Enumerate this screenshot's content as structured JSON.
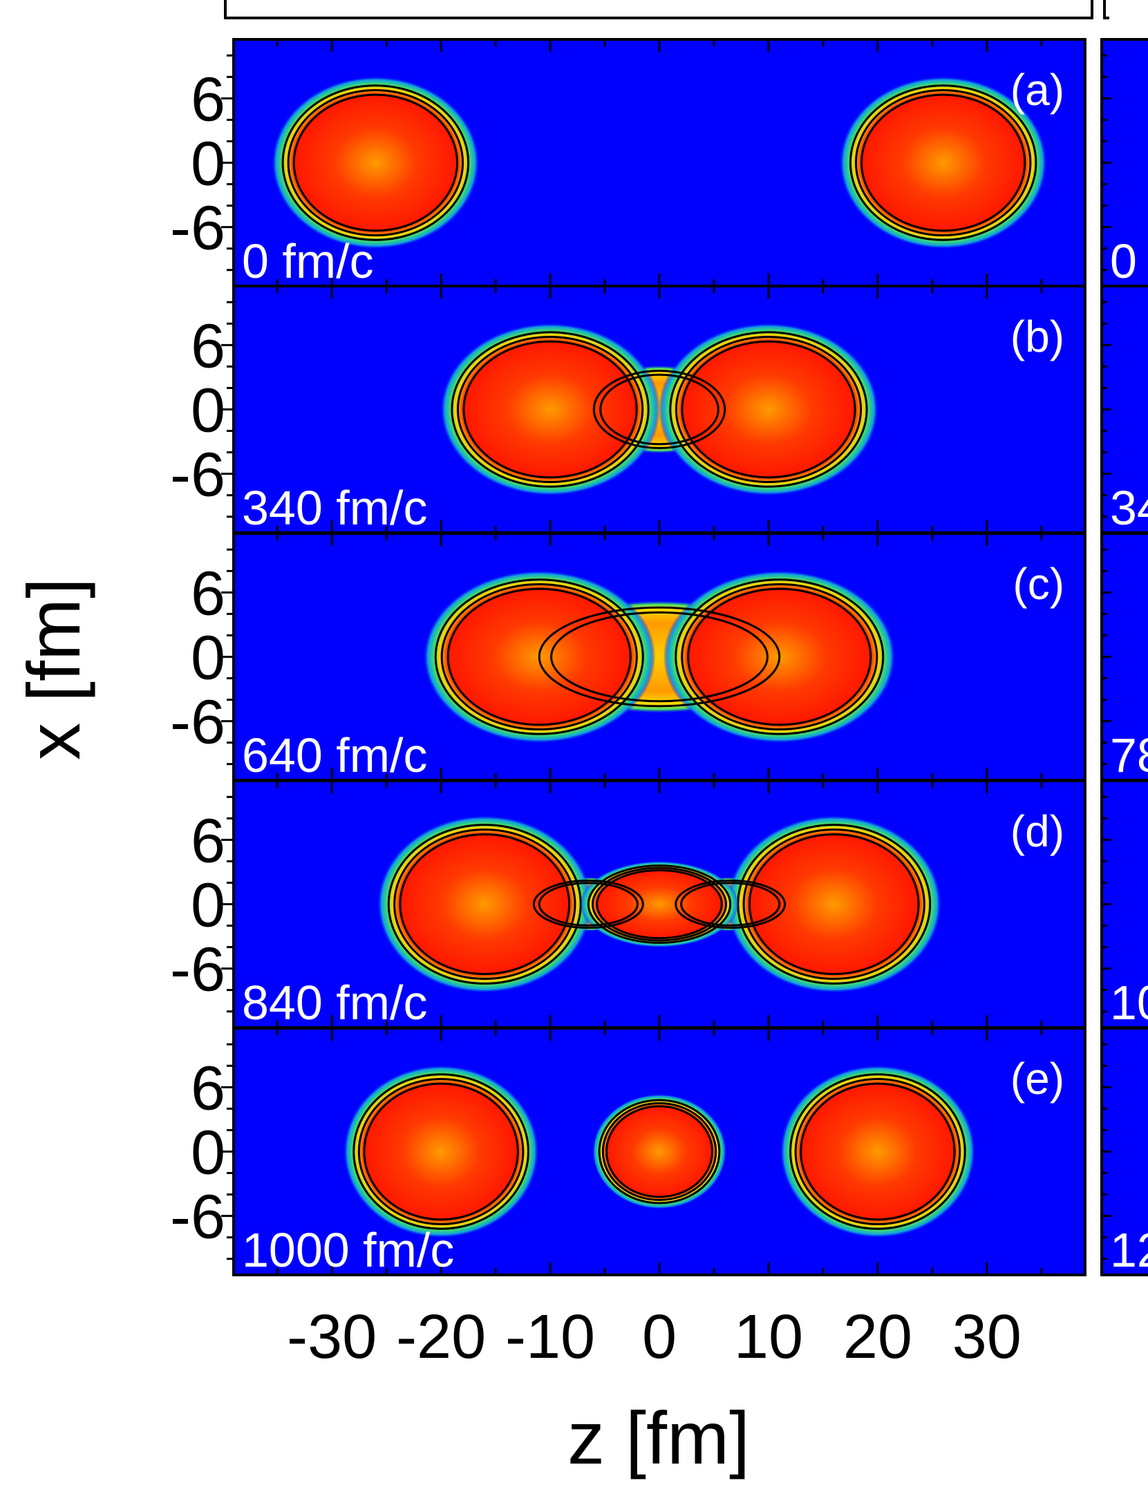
{
  "chart_data": {
    "type": "heatmap",
    "title": "",
    "xlabel": "z [fm]",
    "ylabel": "x [fm]",
    "xlim": [
      -39,
      39
    ],
    "ylim": [
      -11.5,
      11.5
    ],
    "x_ticks": [
      -30,
      -20,
      -10,
      0,
      10,
      20,
      30
    ],
    "x_tick_labels": [
      "-30",
      "-20",
      "-10",
      "0",
      "10",
      "20",
      "30"
    ],
    "y_ticks": [
      -6,
      0,
      6
    ],
    "y_tick_labels": [
      "-6",
      "0",
      "6"
    ],
    "colors": {
      "background": "#0000ff",
      "core": "#ff2a00",
      "neck": "#ffe000",
      "edge": "#19c8a0",
      "contour": "#000000"
    },
    "panels": [
      {
        "label": "(a)",
        "time": "0 fm/c",
        "blobs": [
          {
            "cz": -26,
            "cx": 0,
            "half_length": 8.5,
            "half_width": 7.2
          },
          {
            "cz": 26,
            "cx": 0,
            "half_length": 8.5,
            "half_width": 7.2
          }
        ],
        "necks": []
      },
      {
        "label": "(b)",
        "time": "340 fm/c",
        "blobs": [
          {
            "cz": -10,
            "cx": 0,
            "half_length": 9,
            "half_width": 7.2
          },
          {
            "cz": 10,
            "cx": 0,
            "half_length": 9,
            "half_width": 7.2
          }
        ],
        "necks": [
          {
            "cz": 0,
            "half_length": 6,
            "half_width": 3.6
          }
        ]
      },
      {
        "label": "(c)",
        "time": "640 fm/c",
        "blobs": [
          {
            "cz": -11,
            "cx": 0,
            "half_length": 9.5,
            "half_width": 7.2
          },
          {
            "cz": 11,
            "cx": 0,
            "half_length": 9.5,
            "half_width": 7.2
          }
        ],
        "necks": [
          {
            "cz": 0,
            "half_length": 11,
            "half_width": 4.6
          }
        ]
      },
      {
        "label": "(d)",
        "time": "840 fm/c",
        "blobs": [
          {
            "cz": -16,
            "cx": 0,
            "half_length": 8.8,
            "half_width": 7.4
          },
          {
            "cz": 16,
            "cx": 0,
            "half_length": 8.8,
            "half_width": 7.4
          },
          {
            "cz": 0,
            "cx": 0,
            "half_length": 6.5,
            "half_width": 3.6
          }
        ],
        "necks": [
          {
            "cz": -6.5,
            "half_length": 5,
            "half_width": 2.2
          },
          {
            "cz": 6.5,
            "half_length": 5,
            "half_width": 2.2
          }
        ]
      },
      {
        "label": "(e)",
        "time": "1000 fm/c",
        "blobs": [
          {
            "cz": -20,
            "cx": 0,
            "half_length": 8,
            "half_width": 7.2
          },
          {
            "cz": 20,
            "cx": 0,
            "half_length": 8,
            "half_width": 7.2
          },
          {
            "cz": 0,
            "cx": 0,
            "half_length": 5.5,
            "half_width": 4.8
          }
        ],
        "necks": []
      }
    ]
  },
  "right_panels": {
    "time_fragments": [
      "0",
      "34",
      "78",
      "10",
      "12"
    ]
  }
}
